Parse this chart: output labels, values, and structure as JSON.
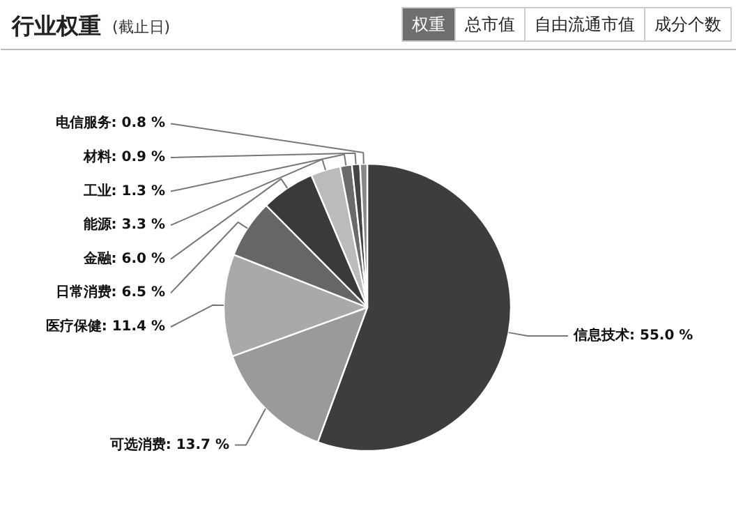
{
  "chart_data": {
    "type": "pie",
    "title": "行业权重",
    "subtitle": "(截止日)",
    "annotations": [
      "权重",
      "总市值",
      "自由流通市值",
      "成分个数"
    ],
    "categories": [
      "信息技术",
      "可选消费",
      "医疗保健",
      "日常消费",
      "金融",
      "能源",
      "工业",
      "材料",
      "电信服务"
    ],
    "values": [
      55.0,
      13.7,
      11.4,
      6.5,
      6.0,
      3.3,
      1.3,
      0.9,
      0.8
    ],
    "value_labels": [
      "55.0 %",
      "13.7 %",
      "11.4 %",
      "6.5 %",
      "6.0 %",
      "3.3 %",
      "1.3 %",
      "0.9 %",
      "0.8 %"
    ],
    "colors": [
      "#3d3d3d",
      "#9a9a9a",
      "#a9a9a9",
      "#666666",
      "#3a3a3a",
      "#bbbbbb",
      "#6a6a6a",
      "#444444",
      "#888888"
    ]
  }
}
